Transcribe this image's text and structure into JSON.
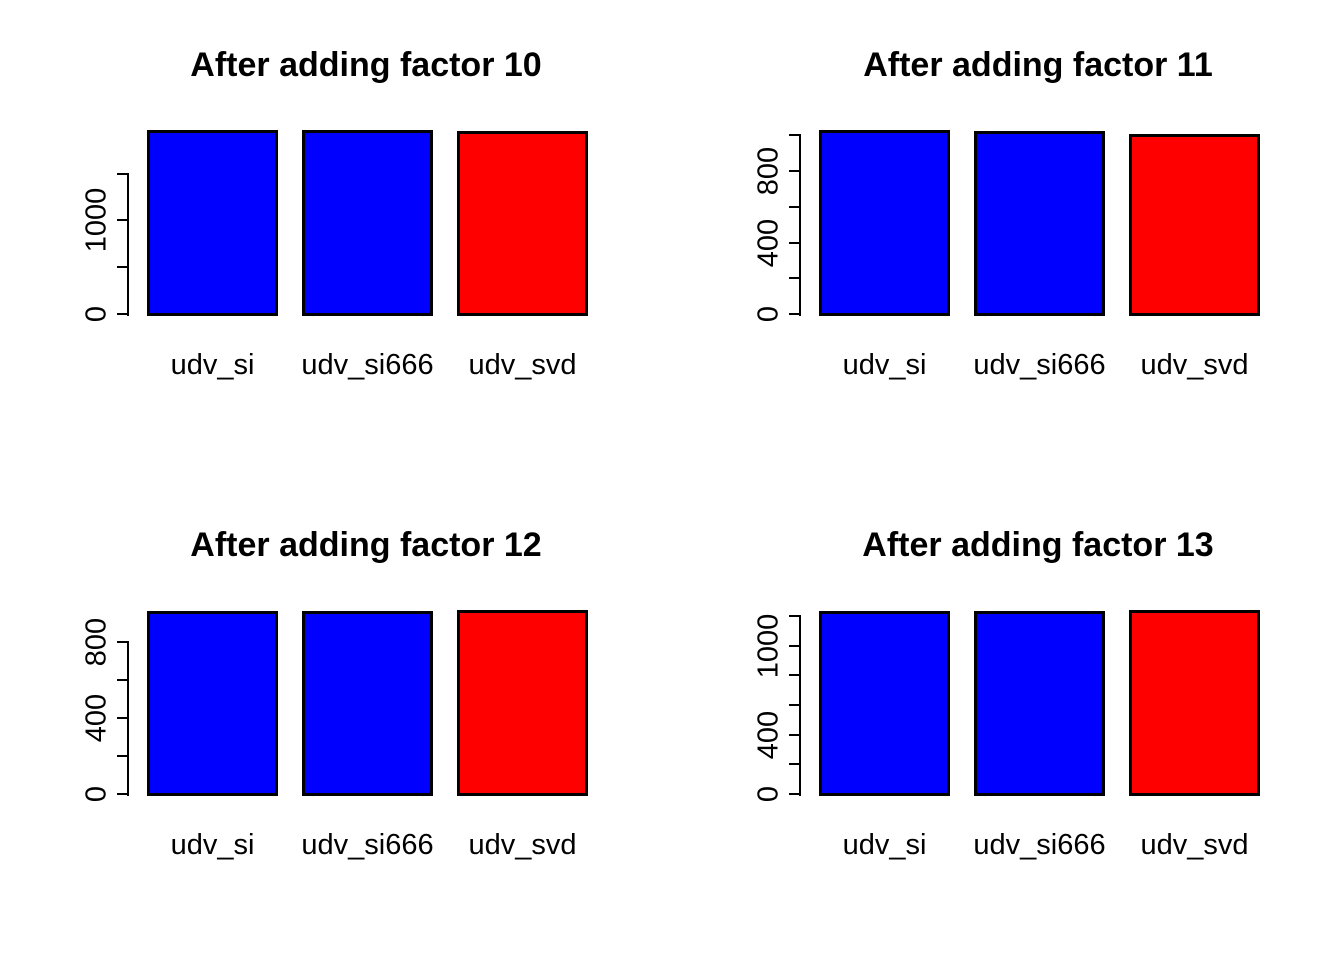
{
  "figure": {
    "background_color": "#ffffff",
    "text_color": "#000000",
    "axis_color": "#000000",
    "bar_border_color": "#000000",
    "layout": "2x2 grid of barplots",
    "grid": false,
    "legend": false
  },
  "chart_data": [
    {
      "type": "bar",
      "title": "After adding factor 10",
      "categories": [
        "udv_si",
        "udv_si666",
        "udv_svd"
      ],
      "values": [
        1965,
        1965,
        1960
      ],
      "bar_colors": [
        "#0000FF",
        "#0000FF",
        "#FF0000"
      ],
      "yticks": [
        0,
        500,
        1000,
        1500
      ],
      "ytick_labels": [
        "0",
        "",
        "1000",
        ""
      ],
      "ylim": [
        0,
        2045
      ],
      "xlabel": "",
      "ylabel": ""
    },
    {
      "type": "bar",
      "title": "After adding factor 11",
      "categories": [
        "udv_si",
        "udv_si666",
        "udv_svd"
      ],
      "values": [
        1030,
        1025,
        1008
      ],
      "bar_colors": [
        "#0000FF",
        "#0000FF",
        "#FF0000"
      ],
      "yticks": [
        0,
        200,
        400,
        600,
        800,
        1000
      ],
      "ytick_labels": [
        "0",
        "",
        "400",
        "",
        "800",
        ""
      ],
      "ylim": [
        0,
        1072
      ],
      "xlabel": "",
      "ylabel": ""
    },
    {
      "type": "bar",
      "title": "After adding factor 12",
      "categories": [
        "udv_si",
        "udv_si666",
        "udv_svd"
      ],
      "values": [
        960,
        960,
        965
      ],
      "bar_colors": [
        "#0000FF",
        "#0000FF",
        "#FF0000"
      ],
      "yticks": [
        0,
        200,
        400,
        600,
        800
      ],
      "ytick_labels": [
        "0",
        "",
        "400",
        "",
        "800"
      ],
      "ylim": [
        0,
        1004
      ],
      "xlabel": "",
      "ylabel": ""
    },
    {
      "type": "bar",
      "title": "After adding factor 13",
      "categories": [
        "udv_si",
        "udv_si666",
        "udv_svd"
      ],
      "values": [
        1235,
        1235,
        1240
      ],
      "bar_colors": [
        "#0000FF",
        "#0000FF",
        "#FF0000"
      ],
      "yticks": [
        0,
        200,
        400,
        600,
        800,
        1000,
        1200
      ],
      "ytick_labels": [
        "0",
        "",
        "400",
        "",
        "",
        "1000",
        ""
      ],
      "ylim": [
        0,
        1290
      ],
      "xlabel": "",
      "ylabel": ""
    }
  ]
}
